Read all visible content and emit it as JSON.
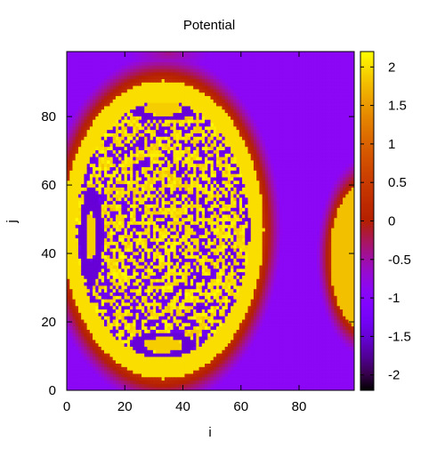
{
  "chart_data": {
    "type": "heatmap",
    "title": "Potential",
    "xlabel": "i",
    "ylabel": "j",
    "xlim": [
      0,
      99
    ],
    "ylim": [
      0,
      99
    ],
    "xticks": [
      0,
      20,
      40,
      60,
      80
    ],
    "yticks": [
      0,
      20,
      40,
      60,
      80
    ],
    "colorbar": {
      "range": [
        -2.2,
        2.2
      ],
      "ticks": [
        "2",
        "1.5",
        "1",
        "0.5",
        "0",
        "-0.5",
        "-1",
        "-1.5",
        "-2"
      ],
      "tick_values": [
        2,
        1.5,
        1,
        0.5,
        0,
        -0.5,
        -1,
        -1.5,
        -2
      ],
      "palette": "gnuplot-black-purple-red-yellow"
    },
    "grid": false,
    "field": {
      "background_value": -0.9,
      "main_blob": {
        "center_i": 33,
        "center_j": 47,
        "semi_axis_i": 35,
        "semi_axis_j": 44,
        "rim_value": 2.0,
        "interior": "checkerboard values between -1.6 and 2.2"
      },
      "right_edge_blob": {
        "center_i": 104,
        "center_j": 39,
        "semi_axis_i": 13,
        "semi_axis_j": 22,
        "rim_value": 1.8
      },
      "top_glow": {
        "center_i": 35,
        "center_j": 99,
        "value": -0.4
      }
    }
  }
}
